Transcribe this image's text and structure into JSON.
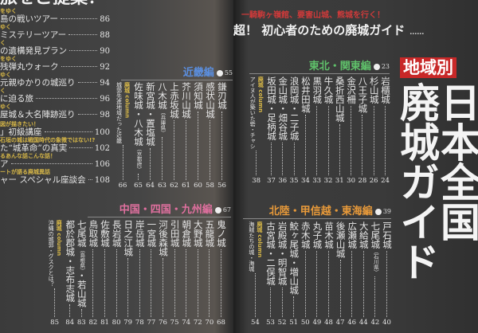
{
  "left_page": {
    "heading": "旅をご提案！",
    "items": [
      {
        "sub": "をゆく",
        "title": "島の戦いツアー",
        "page": "86"
      },
      {
        "sub": "ゆく",
        "title": "ミステリーツアー",
        "page": "88"
      },
      {
        "sub": "く",
        "title": "の遺構発見プラン",
        "page": "90"
      },
      {
        "sub": "をゆく",
        "title": "残弾丸ウォーク",
        "page": "92"
      },
      {
        "sub": "ゆく",
        "title": "元親ゆかりの城巡り",
        "page": "94"
      },
      {
        "sub": "く",
        "title": "に迫る旅",
        "page": "96"
      },
      {
        "sub": "ゆく",
        "title": "屋城＆大名陣跡巡り",
        "page": "98"
      },
      {
        "sub": "図が描きたい！",
        "title": "」初級講座",
        "page": "100"
      },
      {
        "sub": "石垣の城は戦国時代の象徴ではない!?",
        "title": "た“城革命”の真実",
        "page": "102"
      },
      {
        "sub": "るあんな話こんな話！",
        "title": "ア",
        "page": "106"
      },
      {
        "sub": "ートが語る廃城異話",
        "title": "ャー スペシャル座談会",
        "page": "108"
      }
    ]
  },
  "sections": {
    "kinki": {
      "title": "近畿編",
      "page": "55",
      "color": "#5b8fe0",
      "entries": [
        {
          "name": "鎌刃城",
          "page": "56"
        },
        {
          "name": "感状山城",
          "page": "58"
        },
        {
          "name": "須知城",
          "page": "60"
        },
        {
          "name": "芥川山城",
          "page": "61"
        },
        {
          "name": "上赤坂城",
          "page": "62"
        },
        {
          "name": "八木城",
          "note": "（兵庫県）",
          "page": "63"
        },
        {
          "name": "新宮城・置塩城",
          "page": "64"
        },
        {
          "name": "佐味城・八木城",
          "note": "（京都府）",
          "page": "65"
        },
        {
          "column": true,
          "tag": "廃城 column",
          "name": "城郭先進地域だった近畿",
          "page": "66"
        }
      ]
    },
    "chugoku": {
      "title": "中国・四国・九州編",
      "page": "67",
      "color": "#e0709f",
      "entries": [
        {
          "name": "鬼ノ城",
          "page": "68"
        },
        {
          "name": "五龍城",
          "page": "70"
        },
        {
          "name": "大野城",
          "page": "72"
        },
        {
          "name": "朝倉城",
          "page": "74"
        },
        {
          "name": "引田城",
          "page": "75"
        },
        {
          "name": "河後森城",
          "page": "76"
        },
        {
          "name": "一宮城",
          "page": "77"
        },
        {
          "name": "岸岳城",
          "page": "78"
        },
        {
          "name": "日之江城",
          "page": "79"
        },
        {
          "name": "長岩城",
          "page": "80"
        },
        {
          "name": "佐敷城",
          "page": "81"
        },
        {
          "name": "鳥取城",
          "page": "82"
        },
        {
          "name": "七尾城",
          "note": "（島根県）",
          "name2": "・若山城",
          "page": "83"
        },
        {
          "name": "都於郡城・志布志城",
          "page": "84"
        },
        {
          "column": true,
          "tag": "廃城 column",
          "name": "沖縄の城郭・グスクとは？",
          "page": "85"
        }
      ]
    },
    "tohoku": {
      "title": "東北・関東編",
      "page": "23",
      "color": "#5fc06a",
      "entries": [
        {
          "name": "岩櫃城",
          "page": "24"
        },
        {
          "name": "杉山城",
          "page": "26"
        },
        {
          "name": "八王子城",
          "page": "28"
        },
        {
          "name": "金沢柵",
          "page": "30"
        },
        {
          "name": "桑折西山城",
          "page": "31"
        },
        {
          "name": "牛久城",
          "page": "32"
        },
        {
          "name": "黒羽城",
          "page": "33"
        },
        {
          "name": "松井田城",
          "page": "34"
        },
        {
          "name": "浪岡城・二子城",
          "page": "35"
        },
        {
          "name": "金山城・畑谷城",
          "page": "36"
        },
        {
          "name": "坂田城・足柄城",
          "page": "37"
        },
        {
          "column": true,
          "tag": "廃城 column",
          "name": "アイヌ人が築いた砦・チャシ",
          "page": "38"
        }
      ]
    },
    "hokuriku": {
      "title": "北陸・甲信越・東海編",
      "page": "39",
      "color": "#e89a3a",
      "entries": [
        {
          "name": "戸石城",
          "page": "40"
        },
        {
          "name": "七尾城",
          "note": "（石川県）",
          "page": "42"
        },
        {
          "name": "大給城",
          "page": "44"
        },
        {
          "name": "広瀬城",
          "page": "46"
        },
        {
          "name": "後瀬山城",
          "page": "47"
        },
        {
          "name": "苗木城",
          "page": "48"
        },
        {
          "name": "丸子城",
          "page": "49"
        },
        {
          "name": "赤木城",
          "page": "50"
        },
        {
          "name": "鮫ヶ尾城・増山城",
          "page": "51"
        },
        {
          "name": "岩殿城・明智城",
          "page": "52"
        },
        {
          "name": "古宮城・二俣城",
          "page": "53"
        },
        {
          "column": true,
          "tag": "廃城 column",
          "name": "海賊たちの城・海城",
          "page": "54"
        }
      ]
    }
  },
  "right_page": {
    "red_line": "一騎駒ヶ嶺館、要害山城、熊城を行く！",
    "title": "超！ 初心者のための廃城ガイド",
    "title_dots": "……",
    "badge": "地域別",
    "big_title_right": "日本全国",
    "big_title_left": "廃城ガイド",
    "accent_red": "#c82828"
  }
}
